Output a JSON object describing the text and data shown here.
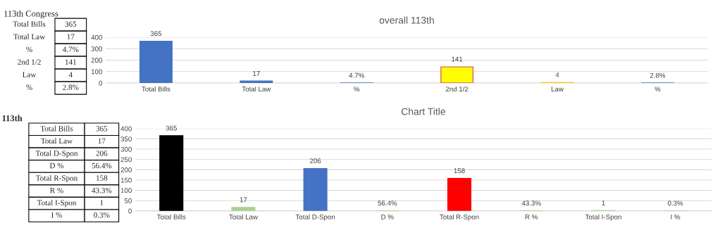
{
  "chart_data": [
    {
      "type": "other",
      "title": "113th Congress",
      "categories": [
        "Total Bills",
        "Total Law",
        "%",
        "2nd 1/2",
        "Law",
        "%"
      ],
      "value_labels": [
        "365",
        "17",
        "4.7%",
        "141",
        "4",
        "2.8%"
      ]
    },
    {
      "type": "bar",
      "title": "overall 113th",
      "categories": [
        "Total Bills",
        "Total Law",
        "%",
        "2nd 1/2",
        "Law",
        "%"
      ],
      "values": [
        365,
        17,
        0.047,
        141,
        4,
        0.028
      ],
      "colors": [
        "#4472c4",
        "#4472c4",
        "#4472c4",
        "#ffff00",
        "#ffc000",
        "#4472c4"
      ],
      "value_labels": [
        "365",
        "17",
        "4.7%",
        "141",
        "4",
        "2.8%"
      ],
      "ylim": [
        0,
        400
      ],
      "yticks": [
        0,
        100,
        200,
        300,
        400
      ],
      "grid": "y"
    },
    {
      "type": "other",
      "title": "113th",
      "categories": [
        "Total Bills",
        "Total Law",
        "Total D-Spon",
        "D %",
        "Total R-Spon",
        "R %",
        "Total I-Spon",
        "I %"
      ],
      "value_labels": [
        "365",
        "17",
        "206",
        "56.4%",
        "158",
        "43.3%",
        "1",
        "0.3%"
      ]
    },
    {
      "type": "bar",
      "title": "Chart Title",
      "categories": [
        "Total Bills",
        "Total Law",
        "Total D-Spon",
        "D %",
        "Total R-Spon",
        "R %",
        "Total I-Spon",
        "I %"
      ],
      "values": [
        365,
        17,
        206,
        0.564,
        158,
        0.433,
        1,
        0.003
      ],
      "colors": [
        "#000000",
        "#a9d18e",
        "#4472c4",
        "#a9d18e",
        "#ff0000",
        "#a9d18e",
        "#a9d18e",
        "#a9d18e"
      ],
      "value_labels": [
        "365",
        "17",
        "206",
        "56.4%",
        "158",
        "43.3%",
        "1",
        "0.3%"
      ],
      "ylim": [
        0,
        400
      ],
      "yticks": [
        0,
        50,
        100,
        150,
        200,
        250,
        300,
        350,
        400
      ],
      "grid": "y"
    }
  ]
}
